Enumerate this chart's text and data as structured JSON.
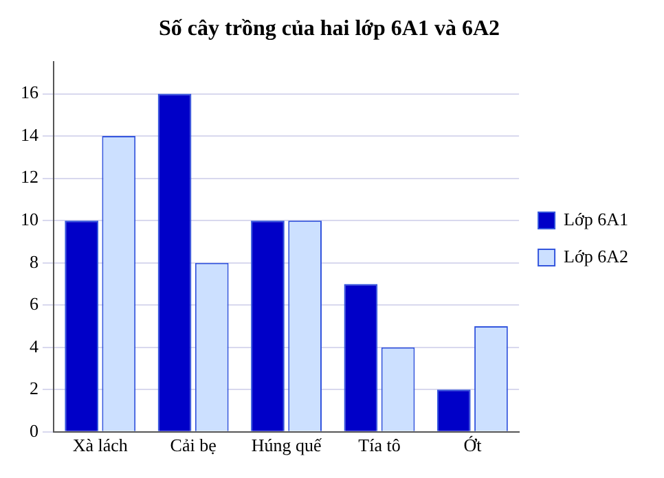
{
  "chart_data": {
    "type": "bar",
    "title": "Số cây trồng của hai lớp 6A1 và 6A2",
    "categories": [
      "Xà lách",
      "Cải bẹ",
      "Húng quế",
      "Tía tô",
      "Ớt"
    ],
    "series": [
      {
        "name": "Lớp 6A1",
        "color": "#0000c8",
        "values": [
          10,
          16,
          10,
          7,
          2
        ]
      },
      {
        "name": "Lớp 6A2",
        "color": "#cce0ff",
        "values": [
          14,
          8,
          10,
          4,
          5
        ]
      }
    ],
    "ylim": [
      0,
      17.5
    ],
    "yticks": [
      0,
      2,
      4,
      6,
      8,
      10,
      12,
      14,
      16
    ],
    "grid": "y",
    "legend": "right"
  }
}
